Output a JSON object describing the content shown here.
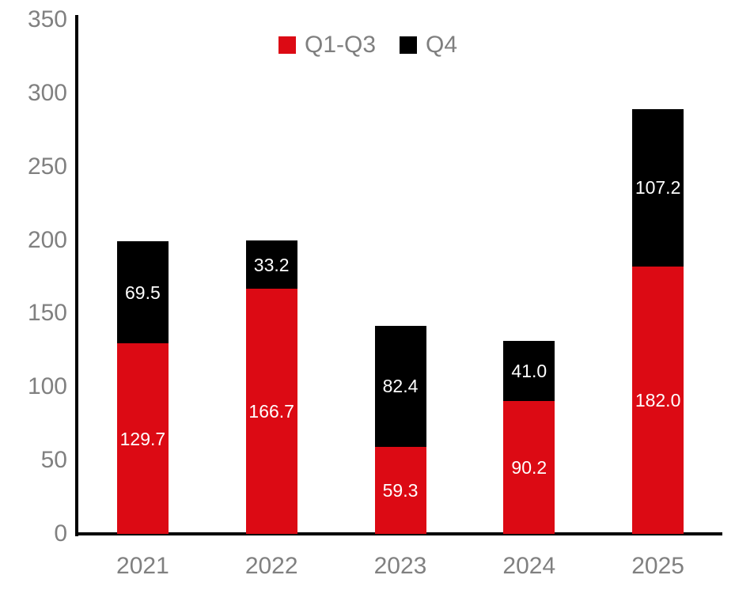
{
  "chart_data": {
    "type": "bar",
    "stacked": true,
    "title": "",
    "xlabel": "",
    "ylabel": "",
    "categories": [
      "2021",
      "2022",
      "2023",
      "2024",
      "2025"
    ],
    "series": [
      {
        "name": "Q1-Q3",
        "color": "#DC0A14",
        "values": [
          129.7,
          166.7,
          59.3,
          90.2,
          182.0
        ]
      },
      {
        "name": "Q4",
        "color": "#000000",
        "values": [
          69.5,
          33.2,
          82.4,
          41.0,
          107.2
        ]
      }
    ],
    "totals": [
      199.2,
      199.9,
      141.7,
      131.2,
      289.2
    ],
    "ylim": [
      0,
      350
    ],
    "yticks": [
      0,
      50,
      100,
      150,
      200,
      250,
      300,
      350
    ],
    "grid": false,
    "legend_position": "top-center",
    "data_label_style": "white, centered in segment, one decimal",
    "data_label_color": "#FFFFFF",
    "axis_line_color": "#000000",
    "tick_label_color": "#808080",
    "legend_text_color": "#7F7F7F",
    "background_color": "#FFFFFF"
  }
}
